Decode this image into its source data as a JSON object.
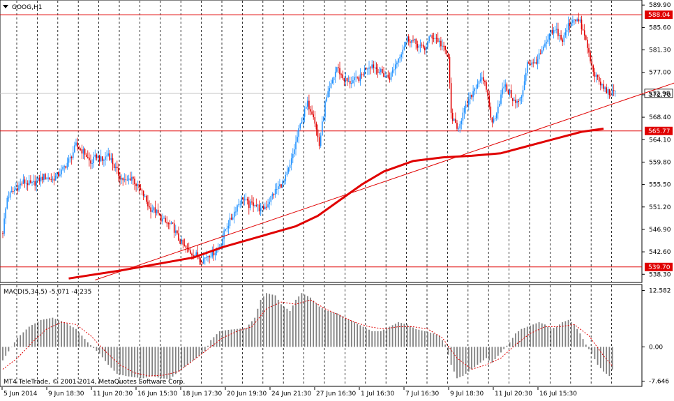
{
  "window": {
    "symbol_label": "GOOG,H1",
    "copyright": "MT4 TeleTrade, © 2001-2014, MetaQuotes Software Corp."
  },
  "colors": {
    "bull": "#1e90ff",
    "bear": "#e00000",
    "ma": "#e00000",
    "level": "#e00000",
    "hist": "#808080",
    "signal": "#e00000",
    "grid": "#000000",
    "bg": "#ffffff",
    "axis_text": "#000000"
  },
  "chart_data": [
    {
      "type": "candlestick",
      "title": "GOOG,H1",
      "ylim": [
        537.0,
        590.6
      ],
      "y_ticks": [
        "589.90",
        "585.60",
        "581.30",
        "577.00",
        "572.70",
        "568.40",
        "564.10",
        "559.80",
        "555.50",
        "551.20",
        "546.90",
        "542.60",
        "538.30"
      ],
      "x_ticks": [
        "5 Jun 2014",
        "9 Jun 18:30",
        "11 Jun 20:30",
        "16 Jun 15:30",
        "18 Jun 17:30",
        "20 Jun 19:30",
        "24 Jun 21:30",
        "27 Jun 16:30",
        "1 Jul 16:30",
        "7 Jul 16:30",
        "9 Jul 18:30",
        "11 Jul 20:30",
        "16 Jul 15:30"
      ],
      "levels": [
        {
          "label": "588.04",
          "value": 588.04
        },
        {
          "label": "565.77",
          "value": 565.77
        },
        {
          "label": "539.70",
          "value": 539.7
        }
      ],
      "current_price": {
        "label": "572.98",
        "value": 572.98
      },
      "close_path": [
        [
          0,
          546.5
        ],
        [
          3,
          553.0
        ],
        [
          8,
          554.5
        ],
        [
          14,
          556.0
        ],
        [
          20,
          555.5
        ],
        [
          28,
          557.0
        ],
        [
          34,
          556.5
        ],
        [
          40,
          558.0
        ],
        [
          46,
          560.5
        ],
        [
          50,
          563.0
        ],
        [
          56,
          561.5
        ],
        [
          60,
          559.5
        ],
        [
          64,
          561.0
        ],
        [
          68,
          560.0
        ],
        [
          72,
          561.5
        ],
        [
          76,
          559.0
        ],
        [
          80,
          557.0
        ],
        [
          84,
          556.0
        ],
        [
          88,
          557.0
        ],
        [
          92,
          555.0
        ],
        [
          96,
          553.5
        ],
        [
          100,
          551.0
        ],
        [
          104,
          550.5
        ],
        [
          108,
          549.0
        ],
        [
          112,
          548.0
        ],
        [
          116,
          547.5
        ],
        [
          120,
          545.0
        ],
        [
          124,
          543.5
        ],
        [
          128,
          542.5
        ],
        [
          132,
          542.0
        ],
        [
          136,
          541.0
        ],
        [
          140,
          542.0
        ],
        [
          144,
          542.5
        ],
        [
          148,
          543.5
        ],
        [
          152,
          547.0
        ],
        [
          156,
          549.0
        ],
        [
          160,
          551.5
        ],
        [
          164,
          553.0
        ],
        [
          168,
          551.5
        ],
        [
          172,
          552.0
        ],
        [
          176,
          550.5
        ],
        [
          180,
          551.5
        ],
        [
          184,
          553.5
        ],
        [
          188,
          555.0
        ],
        [
          192,
          556.0
        ],
        [
          196,
          559.0
        ],
        [
          200,
          563.5
        ],
        [
          204,
          568.0
        ],
        [
          208,
          571.0
        ],
        [
          212,
          569.0
        ],
        [
          216,
          563.0
        ],
        [
          220,
          571.0
        ],
        [
          224,
          574.5
        ],
        [
          228,
          578.0
        ],
        [
          232,
          576.0
        ],
        [
          236,
          575.0
        ],
        [
          240,
          575.5
        ],
        [
          244,
          576.0
        ],
        [
          248,
          578.0
        ],
        [
          252,
          578.5
        ],
        [
          256,
          577.5
        ],
        [
          260,
          576.5
        ],
        [
          264,
          576.0
        ],
        [
          268,
          578.5
        ],
        [
          272,
          581.0
        ],
        [
          276,
          583.5
        ],
        [
          280,
          583.0
        ],
        [
          284,
          582.0
        ],
        [
          288,
          581.5
        ],
        [
          292,
          584.0
        ],
        [
          296,
          583.5
        ],
        [
          300,
          582.0
        ],
        [
          304,
          580.0
        ],
        [
          306,
          569.0
        ],
        [
          310,
          566.0
        ],
        [
          314,
          569.0
        ],
        [
          318,
          571.5
        ],
        [
          322,
          574.0
        ],
        [
          326,
          576.0
        ],
        [
          330,
          574.0
        ],
        [
          334,
          567.0
        ],
        [
          338,
          570.5
        ],
        [
          342,
          574.5
        ],
        [
          346,
          573.0
        ],
        [
          350,
          571.0
        ],
        [
          354,
          572.0
        ],
        [
          358,
          579.0
        ],
        [
          362,
          578.5
        ],
        [
          366,
          580.0
        ],
        [
          370,
          582.0
        ],
        [
          374,
          584.5
        ],
        [
          378,
          585.0
        ],
        [
          382,
          583.0
        ],
        [
          386,
          586.0
        ],
        [
          390,
          587.5
        ],
        [
          394,
          586.5
        ],
        [
          398,
          583.0
        ],
        [
          402,
          578.0
        ],
        [
          406,
          575.5
        ],
        [
          410,
          574.0
        ],
        [
          414,
          573.0
        ],
        [
          418,
          572.98
        ]
      ],
      "moving_average": [
        [
          45,
          537.5
        ],
        [
          80,
          539.0
        ],
        [
          110,
          540.5
        ],
        [
          130,
          541.5
        ],
        [
          150,
          543.5
        ],
        [
          175,
          545.5
        ],
        [
          200,
          547.5
        ],
        [
          215,
          549.5
        ],
        [
          230,
          552.5
        ],
        [
          245,
          555.5
        ],
        [
          260,
          558.0
        ],
        [
          280,
          560.0
        ],
        [
          300,
          560.7
        ],
        [
          320,
          561.0
        ],
        [
          340,
          561.5
        ],
        [
          360,
          563.0
        ],
        [
          380,
          564.5
        ],
        [
          395,
          565.6
        ],
        [
          410,
          566.2
        ]
      ],
      "trendline": {
        "from": [
          63,
          537.2
        ],
        "to": [
          466,
          575.7
        ]
      }
    },
    {
      "type": "bar",
      "title": "MACD(5,34,5) -5.071 -4.235",
      "name": "MACD(5,34,5)",
      "values_label": "-5.071 -4.235",
      "ylim": [
        -8.5,
        13.6
      ],
      "y_ticks": [
        "12.582",
        "0.00",
        "-7.646"
      ],
      "histogram_path": [
        [
          0,
          -3.0
        ],
        [
          4,
          -1.0
        ],
        [
          10,
          2.0
        ],
        [
          18,
          4.5
        ],
        [
          26,
          6.0
        ],
        [
          34,
          6.5
        ],
        [
          42,
          5.5
        ],
        [
          50,
          4.0
        ],
        [
          58,
          1.0
        ],
        [
          66,
          -1.5
        ],
        [
          72,
          -4.0
        ],
        [
          78,
          -6.0
        ],
        [
          84,
          -6.5
        ],
        [
          90,
          -6.8
        ],
        [
          96,
          -7.0
        ],
        [
          102,
          -6.5
        ],
        [
          108,
          -7.0
        ],
        [
          114,
          -7.2
        ],
        [
          120,
          -5.5
        ],
        [
          126,
          -4.0
        ],
        [
          132,
          -2.5
        ],
        [
          138,
          -1.0
        ],
        [
          142,
          1.5
        ],
        [
          148,
          3.5
        ],
        [
          154,
          3.8
        ],
        [
          160,
          4.0
        ],
        [
          166,
          4.2
        ],
        [
          172,
          6.5
        ],
        [
          176,
          10.5
        ],
        [
          180,
          12.0
        ],
        [
          186,
          11.5
        ],
        [
          190,
          9.5
        ],
        [
          196,
          8.0
        ],
        [
          200,
          10.5
        ],
        [
          204,
          12.0
        ],
        [
          210,
          11.0
        ],
        [
          216,
          9.0
        ],
        [
          222,
          8.0
        ],
        [
          228,
          7.5
        ],
        [
          234,
          6.5
        ],
        [
          240,
          5.5
        ],
        [
          246,
          4.5
        ],
        [
          252,
          3.5
        ],
        [
          258,
          3.5
        ],
        [
          264,
          4.5
        ],
        [
          270,
          5.5
        ],
        [
          276,
          5.0
        ],
        [
          282,
          4.0
        ],
        [
          288,
          3.5
        ],
        [
          294,
          3.0
        ],
        [
          298,
          2.5
        ],
        [
          302,
          0.5
        ],
        [
          306,
          -4.0
        ],
        [
          310,
          -7.0
        ],
        [
          314,
          -6.5
        ],
        [
          318,
          -5.5
        ],
        [
          322,
          -4.5
        ],
        [
          326,
          -3.5
        ],
        [
          330,
          -2.5
        ],
        [
          334,
          -3.5
        ],
        [
          338,
          -2.0
        ],
        [
          342,
          -0.5
        ],
        [
          346,
          1.0
        ],
        [
          350,
          3.0
        ],
        [
          354,
          4.0
        ],
        [
          358,
          4.5
        ],
        [
          362,
          5.0
        ],
        [
          366,
          5.5
        ],
        [
          370,
          5.0
        ],
        [
          374,
          4.0
        ],
        [
          378,
          4.5
        ],
        [
          382,
          5.5
        ],
        [
          386,
          6.0
        ],
        [
          390,
          5.0
        ],
        [
          394,
          3.0
        ],
        [
          398,
          0.5
        ],
        [
          402,
          -1.5
        ],
        [
          406,
          -4.0
        ],
        [
          410,
          -5.5
        ],
        [
          414,
          -6.5
        ],
        [
          416,
          -5.071
        ]
      ],
      "signal_path": [
        [
          0,
          -5.0
        ],
        [
          10,
          -2.5
        ],
        [
          20,
          1.0
        ],
        [
          30,
          4.0
        ],
        [
          40,
          5.5
        ],
        [
          50,
          5.0
        ],
        [
          60,
          2.5
        ],
        [
          70,
          -1.0
        ],
        [
          80,
          -4.0
        ],
        [
          90,
          -5.8
        ],
        [
          100,
          -6.5
        ],
        [
          110,
          -6.3
        ],
        [
          120,
          -5.5
        ],
        [
          130,
          -3.0
        ],
        [
          140,
          -0.5
        ],
        [
          150,
          2.0
        ],
        [
          160,
          3.5
        ],
        [
          170,
          4.5
        ],
        [
          180,
          8.5
        ],
        [
          190,
          10.0
        ],
        [
          200,
          9.5
        ],
        [
          210,
          10.5
        ],
        [
          220,
          8.5
        ],
        [
          230,
          7.0
        ],
        [
          240,
          5.5
        ],
        [
          250,
          4.5
        ],
        [
          260,
          4.0
        ],
        [
          270,
          4.5
        ],
        [
          280,
          4.5
        ],
        [
          290,
          4.0
        ],
        [
          300,
          2.0
        ],
        [
          310,
          -2.5
        ],
        [
          320,
          -5.0
        ],
        [
          330,
          -4.0
        ],
        [
          340,
          -2.5
        ],
        [
          350,
          0.5
        ],
        [
          360,
          3.0
        ],
        [
          370,
          4.5
        ],
        [
          380,
          4.5
        ],
        [
          390,
          5.0
        ],
        [
          400,
          2.5
        ],
        [
          410,
          -2.0
        ],
        [
          416,
          -4.235
        ]
      ]
    }
  ]
}
